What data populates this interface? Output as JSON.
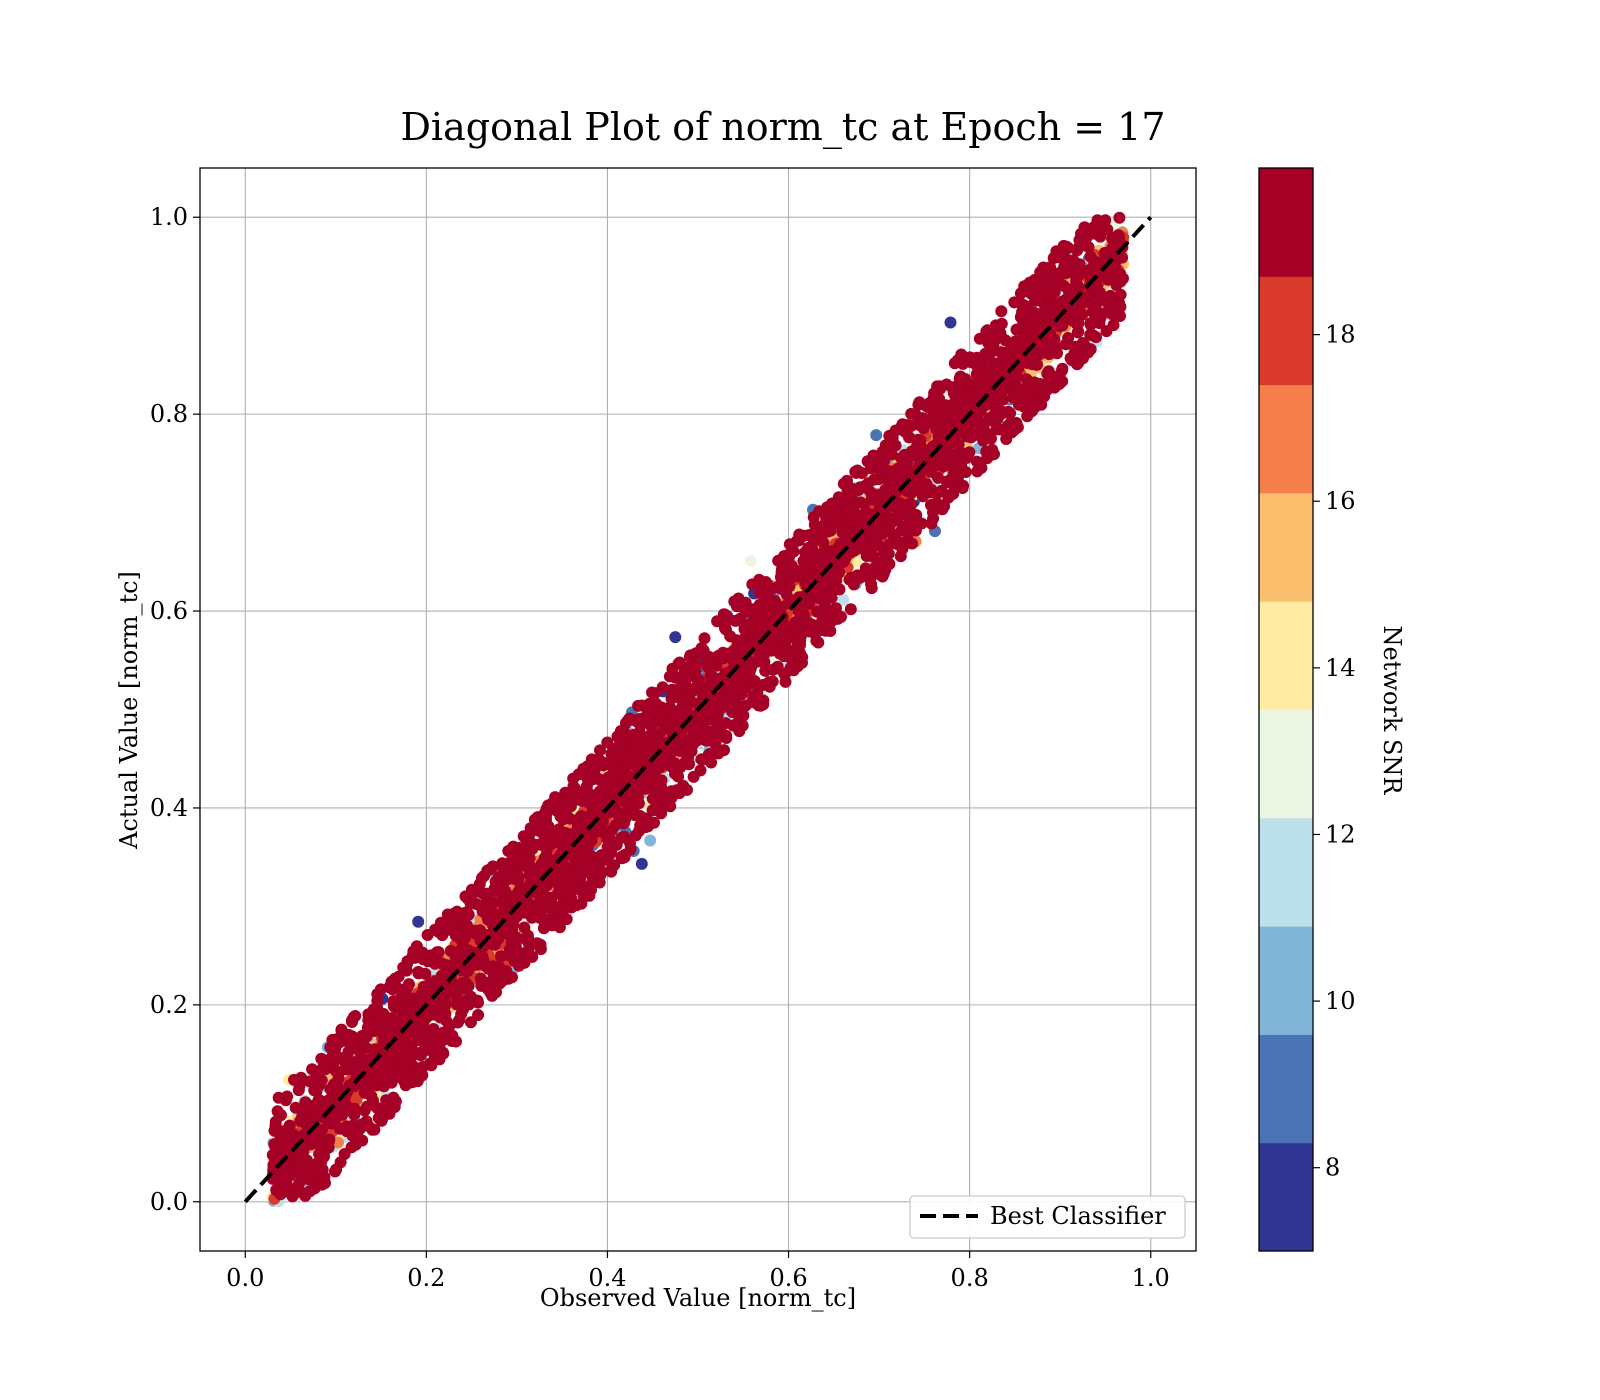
{
  "chart_data": {
    "type": "scatter",
    "title": "Diagonal Plot of norm_tc at Epoch = 17",
    "xlabel": "Observed Value [norm_tc]",
    "ylabel": "Actual Value [norm_tc]",
    "xlim": [
      -0.05,
      1.05
    ],
    "ylim": [
      -0.05,
      1.05
    ],
    "xticks": [
      "0.0",
      "0.2",
      "0.4",
      "0.6",
      "0.8",
      "1.0"
    ],
    "yticks": [
      "0.0",
      "0.2",
      "0.4",
      "0.6",
      "0.8",
      "1.0"
    ],
    "xtick_values": [
      0.0,
      0.2,
      0.4,
      0.6,
      0.8,
      1.0
    ],
    "ytick_values": [
      0.0,
      0.2,
      0.4,
      0.6,
      0.8,
      1.0
    ],
    "grid": true,
    "reference_line": {
      "name": "Best Classifier",
      "style": "dashed",
      "color": "#000000",
      "x": [
        0.0,
        1.0
      ],
      "y": [
        0.0,
        1.0
      ]
    },
    "legend": {
      "entries": [
        "Best Classifier"
      ],
      "placement": "lower-right"
    },
    "colorbar": {
      "label": "Network SNR",
      "range": [
        7,
        20
      ],
      "tick_values": [
        8,
        10,
        12,
        14,
        16,
        18
      ],
      "tick_labels": [
        "8",
        "10",
        "12",
        "14",
        "16",
        "18"
      ],
      "colormap": "RdYlBu_r",
      "levels": [
        {
          "from": 7.0,
          "to": 8.3,
          "color": "#313695"
        },
        {
          "from": 8.3,
          "to": 9.6,
          "color": "#4a74b4"
        },
        {
          "from": 9.6,
          "to": 10.9,
          "color": "#81b6d8"
        },
        {
          "from": 10.9,
          "to": 12.2,
          "color": "#bde1ec"
        },
        {
          "from": 12.2,
          "to": 13.5,
          "color": "#eaf6e1"
        },
        {
          "from": 13.5,
          "to": 14.8,
          "color": "#fdeca2"
        },
        {
          "from": 14.8,
          "to": 16.1,
          "color": "#fcbf6e"
        },
        {
          "from": 16.1,
          "to": 17.4,
          "color": "#f47f4a"
        },
        {
          "from": 17.4,
          "to": 18.7,
          "color": "#d93a2b"
        },
        {
          "from": 18.7,
          "to": 20.0,
          "color": "#a50026"
        }
      ]
    },
    "scatter_description": {
      "series": "norm_tc predictions colored by Network SNR",
      "x_range": [
        0.03,
        0.97
      ],
      "y_range": [
        0.0,
        1.0
      ],
      "high_snr_band_halfwidth_x": 0.07,
      "outlier_spread": "low-SNR points spread widely around diagonal"
    }
  }
}
